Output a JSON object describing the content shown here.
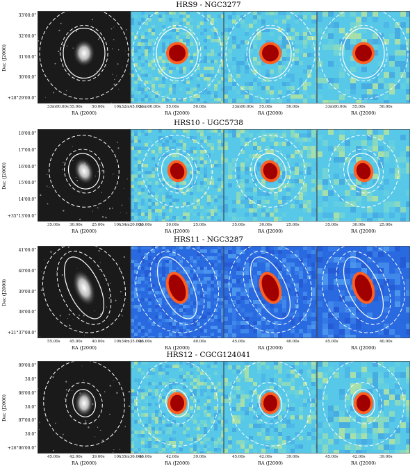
{
  "rows": [
    {
      "title": "HRS9 - NGC3277",
      "y_ticks": [
        "33'00.0\"",
        "32'00.0\"",
        "31'00.0\"",
        "30'00.0\"",
        "+28°29'00.0\""
      ],
      "x_ticks": [
        [
          "33m00.00s",
          "55.00s",
          "50.00s",
          "10h32m45.00s"
        ],
        [
          "33m00.00s",
          "55.00s",
          "50.00s"
        ],
        [
          "33m00.00s",
          "55.00s",
          "50.00s"
        ],
        [
          "33m00.00s",
          "55.00s",
          "50.00s"
        ]
      ],
      "theme": "light"
    },
    {
      "title": "HRS10 - UGC5738",
      "y_ticks": [
        "18'00.0\"",
        "17'00.0\"",
        "16'00.0\"",
        "15'00.0\"",
        "14'00.0\"",
        "+35°13'00.0\""
      ],
      "x_ticks": [
        [
          "35.00s",
          "30.00s",
          "25.00s",
          "10h34m20.00s"
        ],
        [
          "35.00s",
          "30.00s",
          "25.00s"
        ],
        [
          "35.00s",
          "30.00s",
          "25.00s"
        ],
        [
          "35.00s",
          "30.00s",
          "25.00s"
        ]
      ],
      "theme": "light"
    },
    {
      "title": "HRS11 - NGC3287",
      "y_ticks": [
        "41'00.0\"",
        "40'00.0\"",
        "39'00.0\"",
        "38'00.0\"",
        "+21°37'00.0\""
      ],
      "x_ticks": [
        [
          "55.00s",
          "45.00s",
          "40.00s",
          "10h34m35.00s"
        ],
        [
          "45.00s",
          "40.00s"
        ],
        [
          "45.00s",
          "40.00s"
        ],
        [
          "45.00s",
          "40.00s"
        ]
      ],
      "theme": "blue"
    },
    {
      "title": "HRS12 - CGCG124041",
      "y_ticks": [
        "09'00.0\"",
        "30.0\"",
        "08'00.0\"",
        "30.0\"",
        "07'00.0\"",
        "30.0\"",
        "+26°06'00.0\""
      ],
      "x_ticks": [
        [
          "45.00s",
          "42.00s",
          "39.00s",
          "10h35m36.00s"
        ],
        [
          "45.00s",
          "42.00s",
          "39.00s"
        ],
        [
          "45.00s",
          "42.00s",
          "39.00s"
        ],
        [
          "45.00s",
          "42.00s",
          "39.00s"
        ]
      ],
      "theme": "light"
    }
  ],
  "axis_labels": {
    "y": "Dec (J2000)",
    "x": "RA (J2000)"
  },
  "colors": {
    "optical_bg": "#1a1a1a",
    "map_light": "#58c8e8",
    "map_blue": "#2a6ae0",
    "source_core": "#a00000",
    "aperture_line": "#ffffff"
  }
}
